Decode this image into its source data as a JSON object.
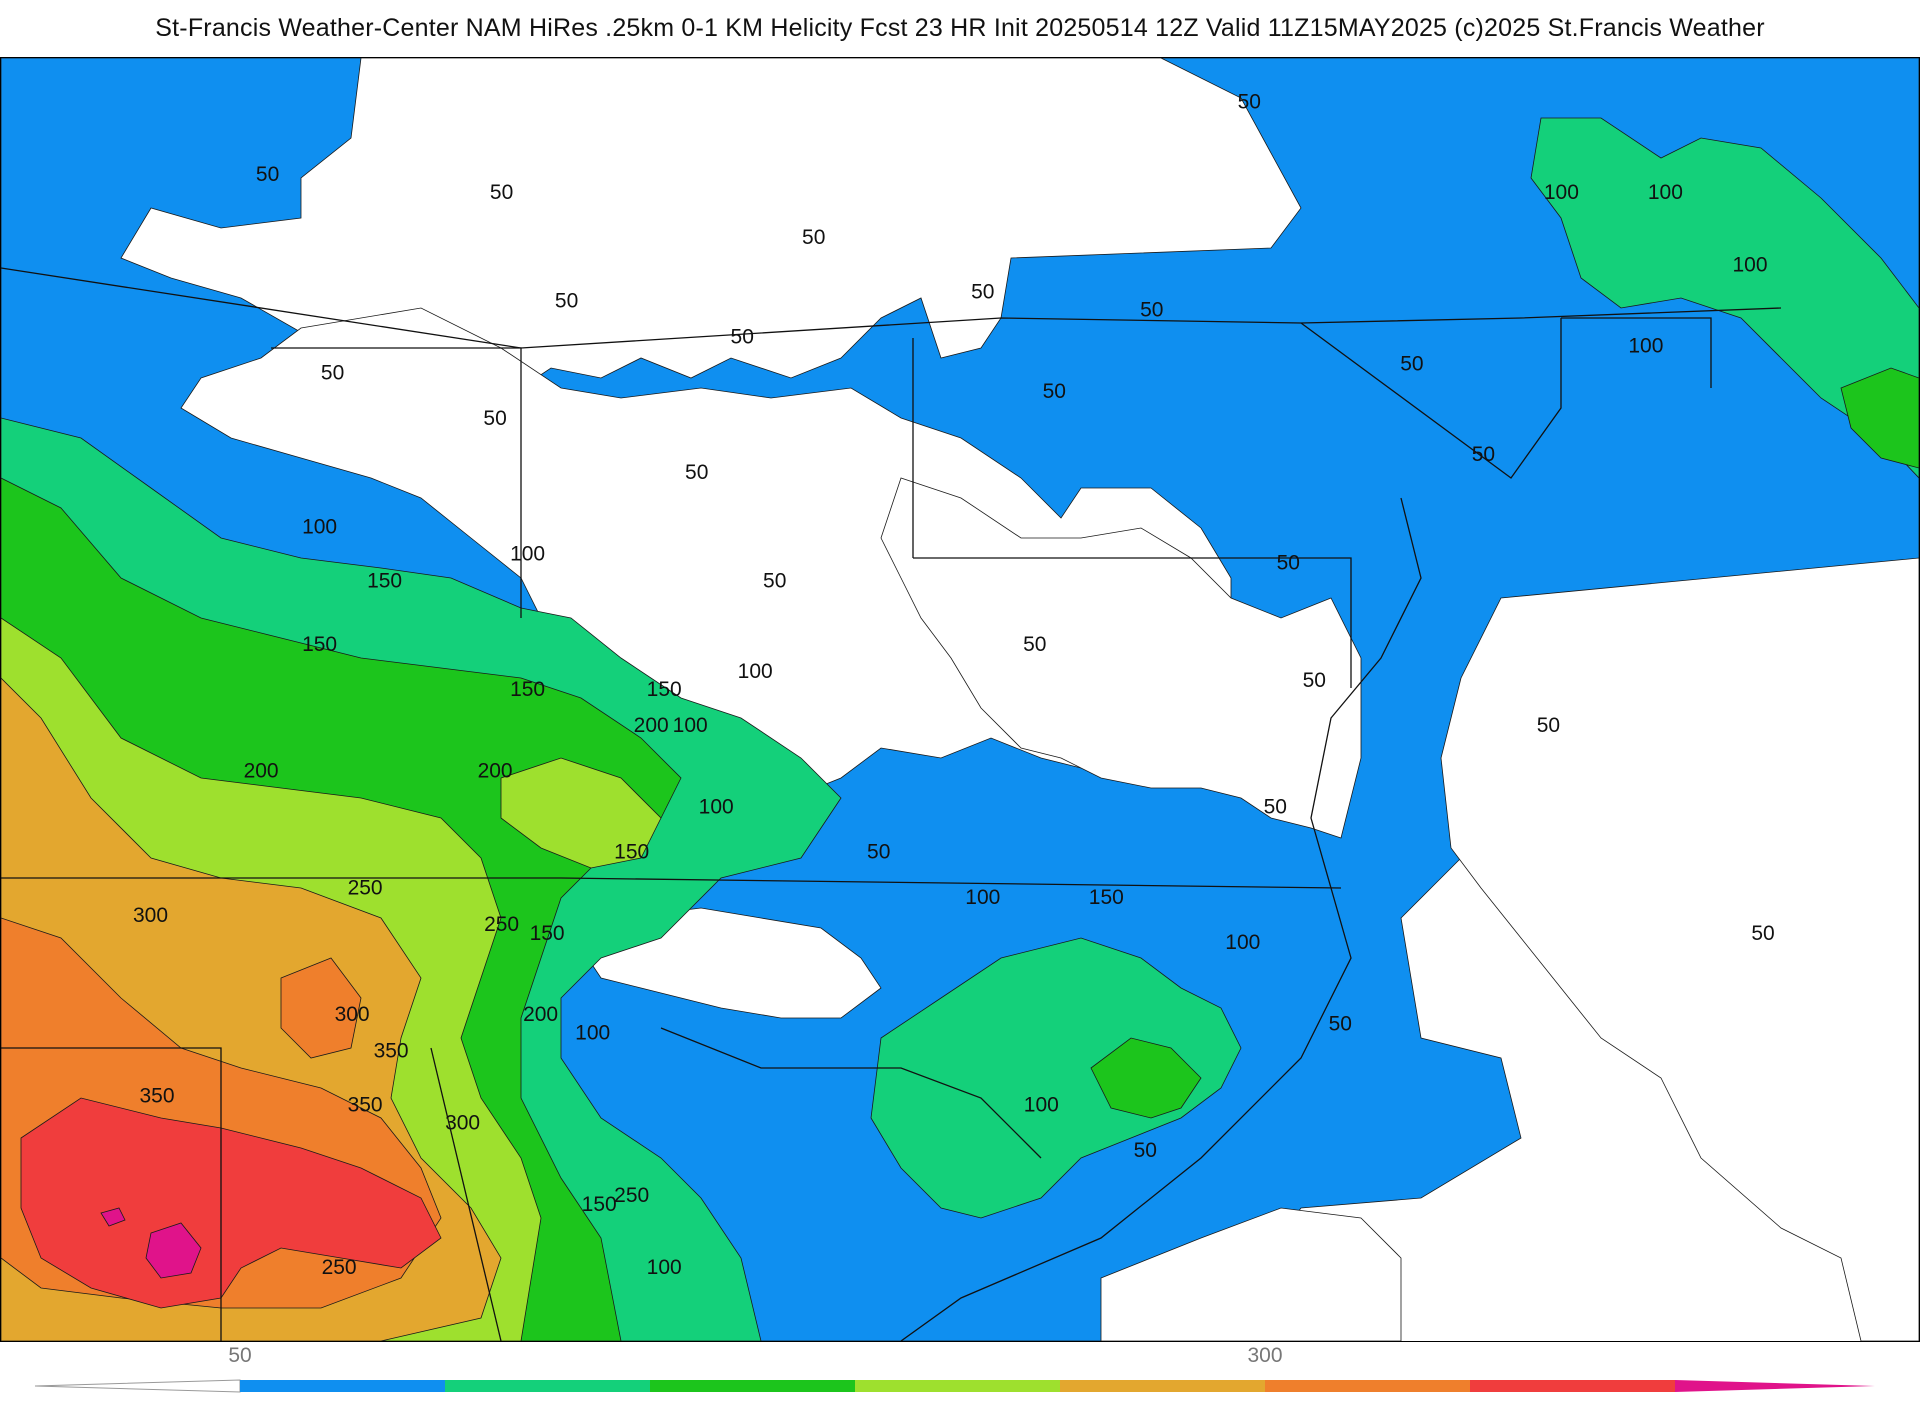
{
  "header": {
    "title": "St-Francis Weather-Center NAM HiRes .25km 0-1 KM Helicity Fcst 23 HR Init 20250514 12Z  Valid 11Z15MAY2025    (c)2025 St.Francis Weather"
  },
  "colors": {
    "c50": "#0f8ff0",
    "c100": "#14d07a",
    "c150": "#1cc51c",
    "c200": "#9ee02e",
    "c250": "#e3a72f",
    "c300": "#ef7f2c",
    "c350": "#f03d3d",
    "c400": "#e0138a",
    "state_line": "#111111",
    "county_line": "#9a9a9a"
  },
  "contour_labels": [
    {
      "text": "50",
      "lon": -91.9,
      "lat": 43.2
    },
    {
      "text": "50",
      "lon": -88.3,
      "lat": 43.0
    },
    {
      "text": "50",
      "lon": -83.5,
      "lat": 42.5
    },
    {
      "text": "50",
      "lon": -76.8,
      "lat": 44.0
    },
    {
      "text": "50",
      "lon": -80.9,
      "lat": 41.9
    },
    {
      "text": "50",
      "lon": -78.3,
      "lat": 41.7
    },
    {
      "text": "50",
      "lon": -87.3,
      "lat": 41.8
    },
    {
      "text": "50",
      "lon": -84.6,
      "lat": 41.4
    },
    {
      "text": "50",
      "lon": -90.9,
      "lat": 41.0
    },
    {
      "text": "50",
      "lon": -88.4,
      "lat": 40.5
    },
    {
      "text": "50",
      "lon": -85.3,
      "lat": 39.9
    },
    {
      "text": "50",
      "lon": -79.8,
      "lat": 40.8
    },
    {
      "text": "50",
      "lon": -74.3,
      "lat": 41.1
    },
    {
      "text": "50",
      "lon": -73.2,
      "lat": 40.1
    },
    {
      "text": "50",
      "lon": -76.2,
      "lat": 38.9
    },
    {
      "text": "50",
      "lon": -84.1,
      "lat": 38.7
    },
    {
      "text": "50",
      "lon": -80.1,
      "lat": 38.0
    },
    {
      "text": "50",
      "lon": -75.8,
      "lat": 37.6
    },
    {
      "text": "50",
      "lon": -72.2,
      "lat": 37.1
    },
    {
      "text": "50",
      "lon": -76.4,
      "lat": 36.2
    },
    {
      "text": "50",
      "lon": -82.5,
      "lat": 35.7
    },
    {
      "text": "50",
      "lon": -75.4,
      "lat": 33.8
    },
    {
      "text": "50",
      "lon": -78.4,
      "lat": 32.4
    },
    {
      "text": "50",
      "lon": -68.9,
      "lat": 34.8
    },
    {
      "text": "100",
      "lon": -72.0,
      "lat": 43.0
    },
    {
      "text": "100",
      "lon": -70.4,
      "lat": 43.0
    },
    {
      "text": "100",
      "lon": -69.1,
      "lat": 42.2
    },
    {
      "text": "100",
      "lon": -70.7,
      "lat": 41.3
    },
    {
      "text": "100",
      "lon": -91.1,
      "lat": 39.3
    },
    {
      "text": "100",
      "lon": -87.9,
      "lat": 39.0
    },
    {
      "text": "100",
      "lon": -84.4,
      "lat": 37.7
    },
    {
      "text": "100",
      "lon": -85.4,
      "lat": 37.1
    },
    {
      "text": "100",
      "lon": -85.0,
      "lat": 36.2
    },
    {
      "text": "100",
      "lon": -80.9,
      "lat": 35.2
    },
    {
      "text": "100",
      "lon": -76.9,
      "lat": 34.7
    },
    {
      "text": "100",
      "lon": -86.9,
      "lat": 33.7
    },
    {
      "text": "100",
      "lon": -80.0,
      "lat": 32.9
    },
    {
      "text": "100",
      "lon": -85.8,
      "lat": 31.1
    },
    {
      "text": "150",
      "lon": -90.1,
      "lat": 38.7
    },
    {
      "text": "150",
      "lon": -91.1,
      "lat": 38.0
    },
    {
      "text": "150",
      "lon": -87.9,
      "lat": 37.5
    },
    {
      "text": "150",
      "lon": -85.8,
      "lat": 37.5
    },
    {
      "text": "150",
      "lon": -86.3,
      "lat": 35.7
    },
    {
      "text": "150",
      "lon": -87.6,
      "lat": 34.8
    },
    {
      "text": "150",
      "lon": -79.0,
      "lat": 35.2
    },
    {
      "text": "150",
      "lon": -86.8,
      "lat": 31.8
    },
    {
      "text": "200",
      "lon": -86.0,
      "lat": 37.1
    },
    {
      "text": "200",
      "lon": -92.0,
      "lat": 36.6
    },
    {
      "text": "200",
      "lon": -88.4,
      "lat": 36.6
    },
    {
      "text": "200",
      "lon": -87.7,
      "lat": 33.9
    },
    {
      "text": "250",
      "lon": -90.4,
      "lat": 35.3
    },
    {
      "text": "250",
      "lon": -88.3,
      "lat": 34.9
    },
    {
      "text": "250",
      "lon": -86.3,
      "lat": 31.9
    },
    {
      "text": "250",
      "lon": -90.8,
      "lat": 31.1
    },
    {
      "text": "300",
      "lon": -93.7,
      "lat": 35.0
    },
    {
      "text": "300",
      "lon": -90.6,
      "lat": 33.9
    },
    {
      "text": "300",
      "lon": -88.9,
      "lat": 32.7
    },
    {
      "text": "350",
      "lon": -90.0,
      "lat": 33.5
    },
    {
      "text": "350",
      "lon": -93.6,
      "lat": 33.0
    },
    {
      "text": "350",
      "lon": -90.4,
      "lat": 32.9
    }
  ],
  "colorbar": {
    "levels": [
      50,
      100,
      150,
      200,
      250,
      300,
      350,
      400
    ],
    "ticks": [
      {
        "text": "50",
        "value": 50
      },
      {
        "text": "300",
        "value": 300
      }
    ]
  }
}
